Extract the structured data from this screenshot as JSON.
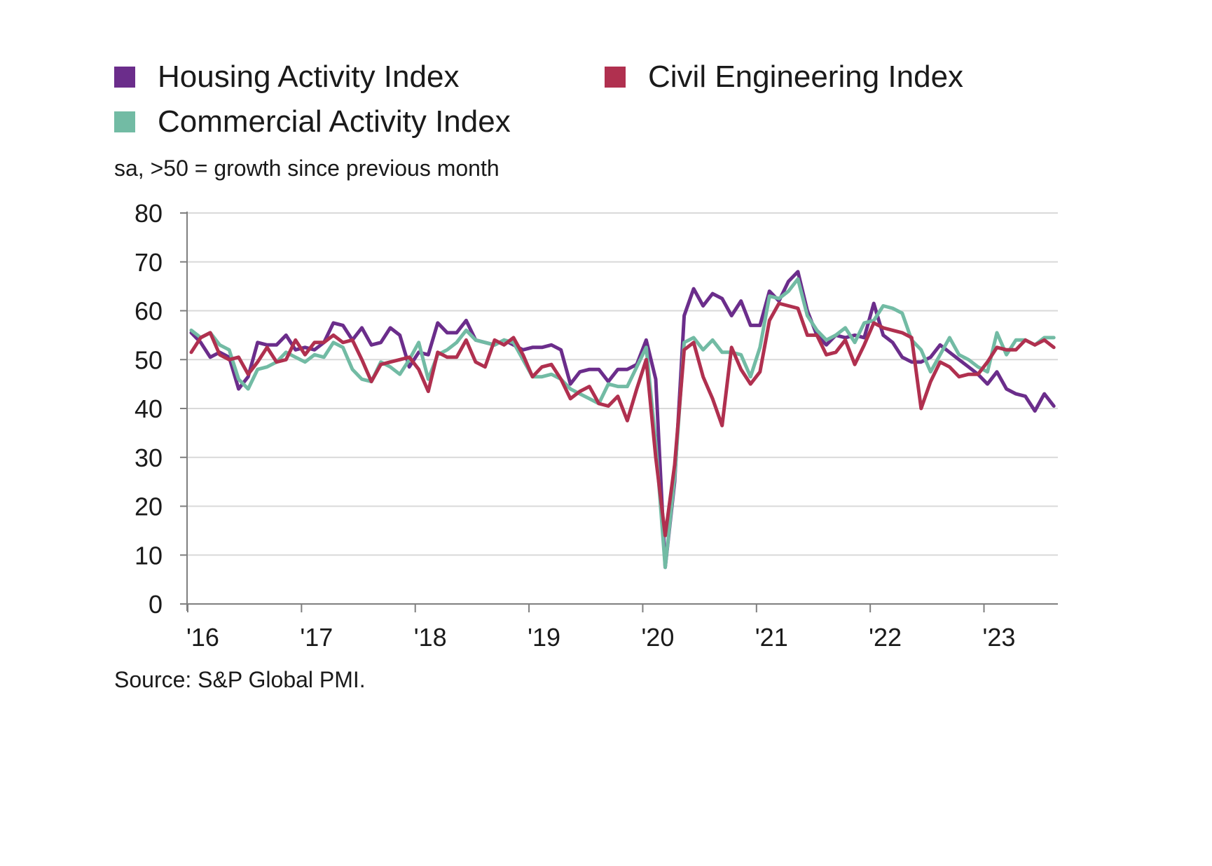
{
  "legend": [
    {
      "name": "Housing Activity Index",
      "color": "#6b2d8b"
    },
    {
      "name": "Civil Engineering Index",
      "color": "#b0304f"
    },
    {
      "name": "Commercial Activity Index",
      "color": "#72bba4"
    }
  ],
  "subtitle": "sa, >50 = growth since previous month",
  "source": "Source: S&P Global PMI.",
  "chart_data": {
    "type": "line",
    "x_start": "2016-01",
    "x_end": "2023-08",
    "xtick_labels": [
      "'16",
      "'17",
      "'18",
      "'19",
      "'20",
      "'21",
      "'22",
      "'23"
    ],
    "ylim": [
      0,
      80
    ],
    "yticks": [
      0,
      10,
      20,
      30,
      40,
      50,
      60,
      70,
      80
    ],
    "grid": "horizontal",
    "legend_position": "top",
    "series": [
      {
        "name": "Housing Activity Index",
        "color": "#6b2d8b",
        "values": [
          55.5,
          53.5,
          50.5,
          51.5,
          50.5,
          44.0,
          46.5,
          53.5,
          53.0,
          53.0,
          55.0,
          52.0,
          52.5,
          52.0,
          53.5,
          57.5,
          57.0,
          54.0,
          56.5,
          53.0,
          53.5,
          56.5,
          55.0,
          48.5,
          51.5,
          51.0,
          57.5,
          55.5,
          55.5,
          58.0,
          54.0,
          53.5,
          53.0,
          54.0,
          53.0,
          52.0,
          52.5,
          52.5,
          53.0,
          52.0,
          45.0,
          47.5,
          48.0,
          48.0,
          45.5,
          48.0,
          48.0,
          49.0,
          54.0,
          46.0,
          7.5,
          25.0,
          59.0,
          64.5,
          61.0,
          63.5,
          62.5,
          59.0,
          62.0,
          57.0,
          57.0,
          64.0,
          62.0,
          66.0,
          68.0,
          60.0,
          55.0,
          53.0,
          55.0,
          54.5,
          55.0,
          54.5,
          61.5,
          55.0,
          53.5,
          50.5,
          49.5,
          49.5,
          50.5,
          53.0,
          51.5,
          50.0,
          48.5,
          47.0,
          45.0,
          47.5,
          44.0,
          43.0,
          42.5,
          39.5,
          43.0,
          40.5
        ]
      },
      {
        "name": "Commercial Activity Index",
        "color": "#72bba4",
        "values": [
          56.0,
          54.5,
          55.5,
          53.0,
          52.0,
          46.0,
          44.0,
          48.0,
          48.5,
          49.5,
          51.5,
          50.5,
          49.5,
          51.0,
          50.5,
          53.5,
          52.5,
          48.0,
          46.0,
          45.5,
          49.5,
          48.5,
          47.0,
          50.0,
          53.5,
          46.0,
          51.0,
          52.0,
          53.5,
          56.0,
          54.0,
          53.5,
          53.0,
          54.0,
          53.5,
          50.0,
          46.5,
          46.5,
          47.0,
          46.0,
          44.0,
          43.0,
          42.0,
          41.0,
          45.0,
          44.5,
          44.5,
          48.5,
          52.5,
          33.0,
          7.5,
          26.0,
          53.5,
          54.5,
          52.0,
          54.0,
          51.5,
          51.5,
          51.0,
          46.5,
          52.5,
          63.0,
          62.5,
          64.0,
          66.5,
          59.0,
          56.0,
          54.0,
          55.0,
          56.5,
          53.5,
          57.5,
          58.0,
          61.0,
          60.5,
          59.5,
          54.0,
          52.0,
          47.5,
          51.0,
          54.5,
          51.0,
          50.0,
          48.5,
          47.5,
          55.5,
          51.0,
          54.0,
          54.0,
          53.0,
          54.5,
          54.5
        ]
      },
      {
        "name": "Civil Engineering Index",
        "color": "#b0304f",
        "values": [
          51.5,
          54.5,
          55.5,
          51.0,
          50.0,
          50.5,
          47.0,
          49.5,
          52.5,
          49.5,
          50.0,
          54.0,
          51.0,
          53.5,
          53.5,
          55.0,
          53.5,
          54.0,
          50.0,
          45.5,
          49.0,
          49.5,
          50.0,
          50.5,
          48.0,
          43.5,
          51.5,
          50.5,
          50.5,
          54.0,
          49.5,
          48.5,
          54.0,
          53.0,
          54.5,
          51.0,
          46.5,
          48.5,
          49.0,
          46.0,
          42.0,
          43.5,
          44.5,
          41.0,
          40.5,
          42.5,
          37.5,
          44.0,
          50.0,
          30.0,
          14.0,
          28.5,
          52.0,
          53.5,
          46.5,
          42.0,
          36.5,
          52.5,
          48.0,
          45.0,
          47.5,
          58.0,
          61.5,
          61.0,
          60.5,
          55.0,
          55.0,
          51.0,
          51.5,
          54.0,
          49.0,
          53.0,
          57.5,
          56.5,
          56.0,
          55.5,
          54.5,
          40.0,
          45.5,
          49.5,
          48.5,
          46.5,
          47.0,
          47.0,
          49.5,
          52.5,
          52.0,
          52.0,
          54.0,
          53.0,
          54.0,
          52.5
        ]
      }
    ]
  }
}
